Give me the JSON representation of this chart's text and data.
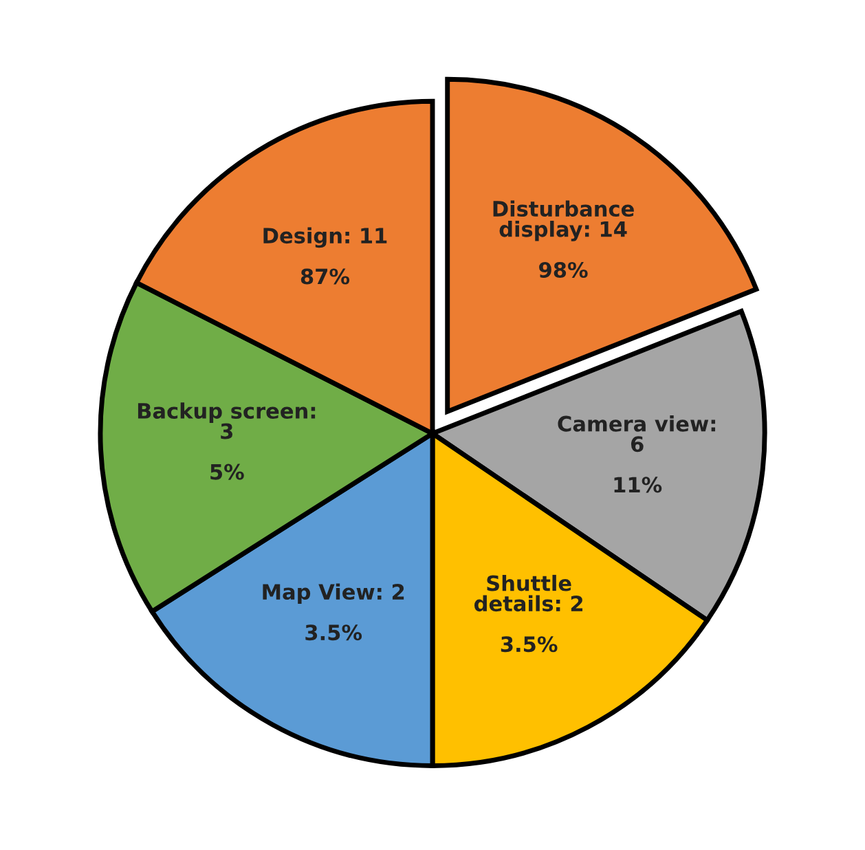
{
  "chart_data": {
    "type": "pie",
    "categories": [
      "Disturbance\ndisplay: 14\n\n98%",
      "Camera view:\n6\n\n11%",
      "Shuttle\ndetails: 2\n\n3.5%",
      "Map View: 2\n\n3.5%",
      "Backup screen:\n3\n\n5%",
      "Design: 11\n\n87%"
    ],
    "values": [
      19,
      15.5,
      15.5,
      16,
      16.5,
      17.5
    ],
    "colors": [
      "#ed7d31",
      "#a5a5a5",
      "#ffc000",
      "#5b9bd5",
      "#70ad47",
      "#ed7d31"
    ],
    "legend": false
  }
}
